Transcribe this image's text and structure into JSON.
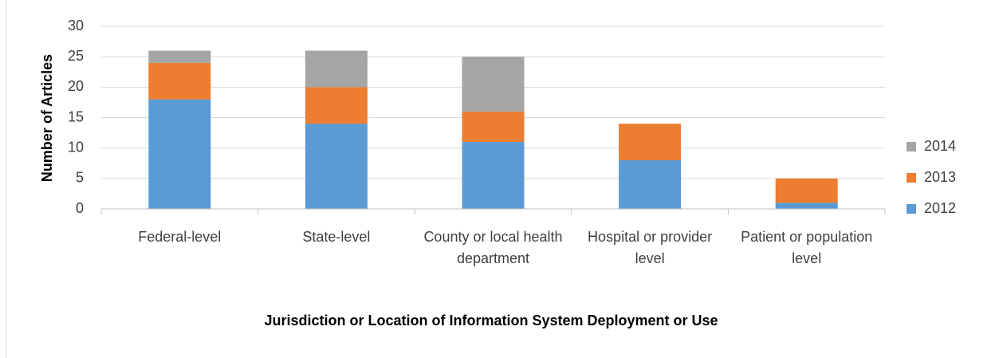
{
  "chart_data": {
    "type": "stacked_bar",
    "xlabel": "Jurisdiction or Location of Information System Deployment or Use",
    "ylabel": "Number of Articles",
    "categories": [
      "Federal-level",
      "State-level",
      "County or local health department",
      "Hospital or provider level",
      "Patient or population level"
    ],
    "series": [
      {
        "name": "2012",
        "color": "#5b9bd5",
        "values": [
          18,
          14,
          11,
          8,
          1
        ]
      },
      {
        "name": "2013",
        "color": "#ed7d31",
        "values": [
          6,
          6,
          5,
          6,
          4
        ]
      },
      {
        "name": "2014",
        "color": "#a5a5a5",
        "values": [
          2,
          6,
          9,
          0,
          0
        ]
      }
    ],
    "ylim": [
      0,
      30
    ],
    "yticks": [
      0,
      5,
      10,
      15,
      20,
      25,
      30
    ],
    "grid": true,
    "legend": "right"
  }
}
